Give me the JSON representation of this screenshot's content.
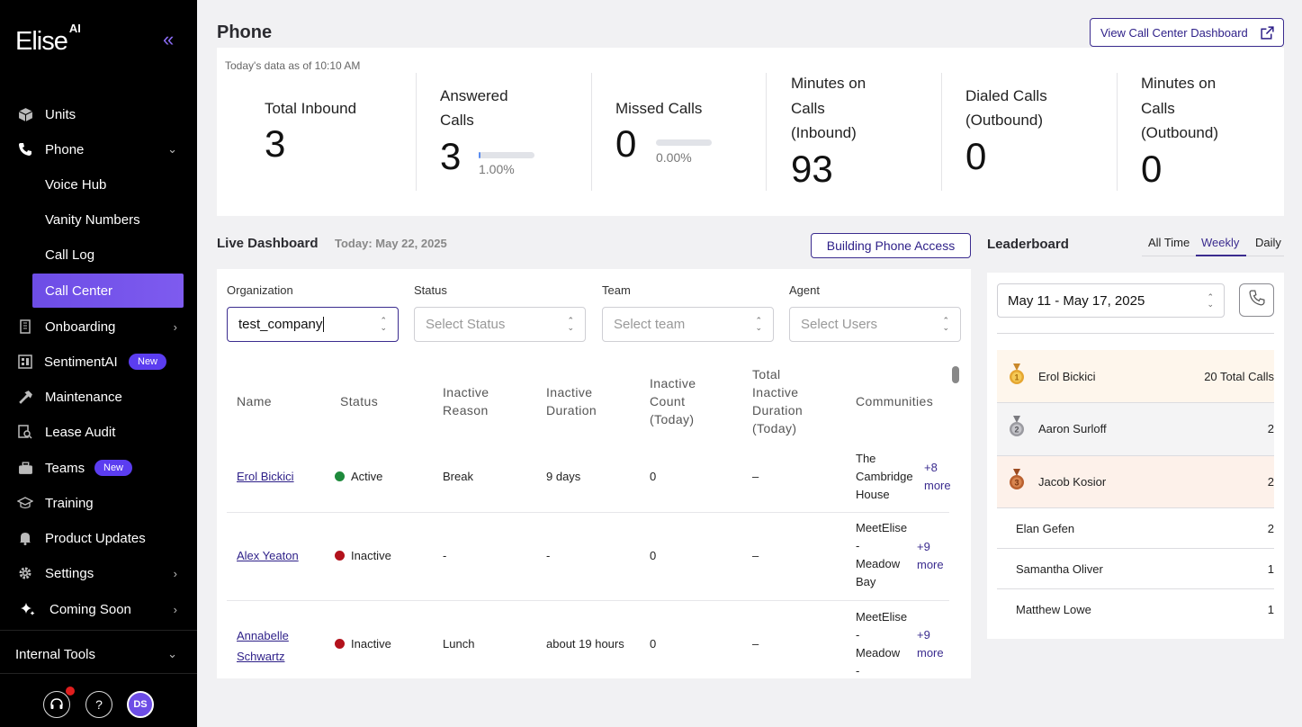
{
  "sidebar": {
    "logo": "Elise",
    "logo_sup": "AI",
    "items": [
      {
        "label": "Units",
        "icon": "cube-icon"
      },
      {
        "label": "Phone",
        "icon": "phone-icon"
      },
      {
        "label": "Onboarding",
        "icon": "building-icon"
      },
      {
        "label": "SentimentAI",
        "icon": "dashboard-icon",
        "badge": "New"
      },
      {
        "label": "Maintenance",
        "icon": "hammer-icon"
      },
      {
        "label": "Lease Audit",
        "icon": "document-search-icon"
      },
      {
        "label": "Teams",
        "icon": "briefcase-icon",
        "badge": "New"
      },
      {
        "label": "Training",
        "icon": "graduation-cap-icon"
      },
      {
        "label": "Product Updates",
        "icon": "bell-icon"
      },
      {
        "label": "Settings",
        "icon": "gear-icon"
      },
      {
        "label": "Coming Soon",
        "icon": "sparkle-icon"
      }
    ],
    "phone_sub": [
      "Voice Hub",
      "Vanity Numbers",
      "Call Log",
      "Call Center"
    ],
    "internal_tools": "Internal Tools",
    "avatar": "DS"
  },
  "header": {
    "title": "Phone",
    "dashboard_button": "View Call Center Dashboard"
  },
  "stats": {
    "as_of": "Today's data as of 10:10 AM",
    "total_inbound": {
      "label": "Total Inbound",
      "value": "3"
    },
    "answered": {
      "label1": "Answered",
      "label2": "Calls",
      "value": "3",
      "pct": "1.00%",
      "fraction": 0.01
    },
    "missed": {
      "label": "Missed Calls",
      "value": "0",
      "pct": "0.00%",
      "fraction": 0
    },
    "min_inbound": {
      "l1": "Minutes on",
      "l2": "Calls",
      "l3": "(Inbound)",
      "value": "93"
    },
    "dialed": {
      "l1": "Dialed Calls",
      "l2": "(Outbound)",
      "value": "0"
    },
    "min_outbound": {
      "l1": "Minutes on",
      "l2": "Calls",
      "l3": "(Outbound)",
      "value": "0"
    }
  },
  "live": {
    "title": "Live Dashboard",
    "date": "Today: May 22, 2025",
    "access_button": "Building Phone Access",
    "filters": {
      "org_label": "Organization",
      "org_value": "test_company",
      "status_label": "Status",
      "status_placeholder": "Select Status",
      "team_label": "Team",
      "team_placeholder": "Select team",
      "agent_label": "Agent",
      "agent_placeholder": "Select Users"
    },
    "columns": {
      "name": "Name",
      "status": "Status",
      "reason": [
        "Inactive",
        "Reason"
      ],
      "duration": [
        "Inactive",
        "Duration"
      ],
      "count": [
        "Inactive",
        "Count",
        "(Today)"
      ],
      "total": [
        "Total",
        "Inactive",
        "Duration",
        "(Today)"
      ],
      "communities": "Communities"
    },
    "rows": [
      {
        "name": "Erol Bickici",
        "status": "Active",
        "status_color": "#1e8a3c",
        "reason": "Break",
        "duration": "9 days",
        "count": "0",
        "total": "–",
        "community": [
          "The",
          "Cambridge",
          "House"
        ],
        "more": [
          "+8",
          "more"
        ]
      },
      {
        "name": "Alex Yeaton",
        "status": "Inactive",
        "status_color": "#b3121c",
        "reason": "-",
        "duration": "-",
        "count": "0",
        "total": "–",
        "community": [
          "MeetElise",
          "-",
          "Meadow",
          "Bay"
        ],
        "more": [
          "+9",
          "more"
        ]
      },
      {
        "name1": "Annabelle",
        "name2": "Schwartz",
        "status": "Inactive",
        "status_color": "#b3121c",
        "reason": "Lunch",
        "duration": "about 19 hours",
        "count": "0",
        "total": "–",
        "community": [
          "MeetElise",
          "-",
          "Meadow",
          "-"
        ],
        "more": [
          "+9",
          "more"
        ]
      }
    ]
  },
  "leaderboard": {
    "title": "Leaderboard",
    "tabs": [
      "All Time",
      "Weekly",
      "Daily"
    ],
    "active_tab": "Weekly",
    "range": "May 11 - May 17, 2025",
    "entries": [
      {
        "name": "Erol Bickici",
        "calls": "20 Total Calls",
        "medal": "gold"
      },
      {
        "name": "Aaron Surloff",
        "calls": "2",
        "medal": "silver"
      },
      {
        "name": "Jacob Kosior",
        "calls": "2",
        "medal": "bronze"
      },
      {
        "name": "Elan Gefen",
        "calls": "2"
      },
      {
        "name": "Samantha Oliver",
        "calls": "1"
      },
      {
        "name": "Matthew Lowe",
        "calls": "1"
      }
    ]
  }
}
